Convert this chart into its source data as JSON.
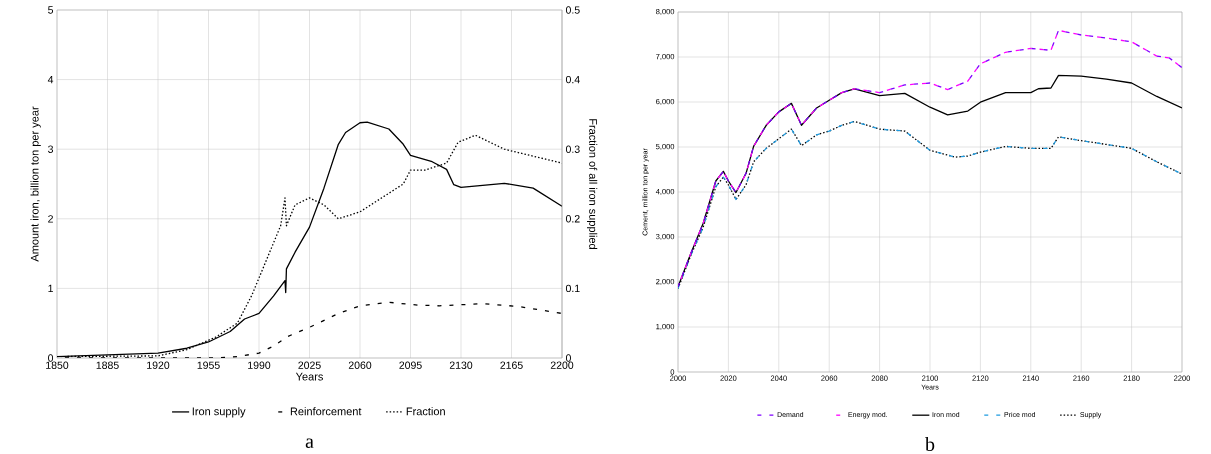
{
  "chart_data": [
    {
      "type": "line",
      "xlabel": "Years",
      "ylabel": "Amount iron, billion ton per year",
      "y2label": "Fraction of all iron supplied",
      "xlim": [
        1850,
        2200
      ],
      "xticks": [
        1850,
        1885,
        1920,
        1955,
        1990,
        2025,
        2060,
        2095,
        2130,
        2165,
        2200
      ],
      "ylim": [
        0,
        5
      ],
      "yticks": [
        0,
        1,
        2,
        3,
        4,
        5
      ],
      "y2lim": [
        0,
        0.5
      ],
      "y2ticks": [
        0,
        0.1,
        0.2,
        0.3,
        0.4,
        0.5
      ],
      "grid": true,
      "legend": "bottom",
      "annotations": [
        "a"
      ],
      "series": [
        {
          "name": "Iron supply",
          "color": "#000000",
          "line_style": "solid",
          "x": [
            1850,
            1920,
            1940,
            1955,
            1970,
            1980,
            1990,
            2000,
            2008,
            2008.5,
            2009,
            2015,
            2025,
            2035,
            2045,
            2050,
            2060,
            2065,
            2080,
            2090,
            2095,
            2110,
            2120,
            2125,
            2130,
            2160,
            2180,
            2200
          ],
          "values": [
            0.02,
            0.07,
            0.14,
            0.23,
            0.38,
            0.56,
            0.64,
            0.89,
            1.11,
            0.94,
            1.28,
            1.52,
            1.88,
            2.44,
            3.07,
            3.24,
            3.38,
            3.39,
            3.29,
            3.07,
            2.91,
            2.82,
            2.71,
            2.49,
            2.45,
            2.51,
            2.44,
            2.18
          ]
        },
        {
          "name": "Reinforcement",
          "color": "#000000",
          "line_style": "dashed",
          "x": [
            1850,
            1960,
            1975,
            1990,
            2000,
            2010,
            2025,
            2045,
            2060,
            2080,
            2100,
            2115,
            2145,
            2170,
            2200
          ],
          "values": [
            0,
            0,
            0.02,
            0.07,
            0.17,
            0.31,
            0.44,
            0.64,
            0.75,
            0.8,
            0.76,
            0.75,
            0.78,
            0.74,
            0.64
          ]
        },
        {
          "name": "Fraction",
          "color": "#000000",
          "line_style": "dotted",
          "axis": "y2",
          "x": [
            1850,
            1920,
            1940,
            1960,
            1975,
            1985,
            1995,
            2005,
            2008,
            2009,
            2015,
            2025,
            2035,
            2045,
            2060,
            2075,
            2090,
            2095,
            2105,
            2120,
            2128,
            2140,
            2160,
            2180,
            2200
          ],
          "values": [
            0.002,
            0.003,
            0.012,
            0.03,
            0.05,
            0.09,
            0.14,
            0.19,
            0.23,
            0.19,
            0.22,
            0.23,
            0.22,
            0.2,
            0.21,
            0.23,
            0.25,
            0.27,
            0.27,
            0.28,
            0.31,
            0.32,
            0.3,
            0.29,
            0.28
          ]
        }
      ]
    },
    {
      "type": "line",
      "xlabel": "Years",
      "ylabel": "Cement, million ton per year",
      "xlim": [
        2000,
        2200
      ],
      "xticks": [
        2000,
        2020,
        2040,
        2060,
        2080,
        2100,
        2120,
        2140,
        2160,
        2180,
        2200
      ],
      "ylim": [
        0,
        8000
      ],
      "yticks": [
        0,
        {
          "value": 1000,
          "label": "1,000"
        },
        {
          "value": 2000,
          "label": "2,000"
        },
        {
          "value": 3000,
          "label": "3,000"
        },
        {
          "value": 4000,
          "label": "4,000"
        },
        {
          "value": 5000,
          "label": "5,000"
        },
        {
          "value": 6000,
          "label": "6,000"
        },
        {
          "value": 7000,
          "label": "7,000"
        },
        {
          "value": 8000,
          "label": "8,000"
        }
      ],
      "grid": true,
      "legend": "bottom",
      "annotations": [
        "b"
      ],
      "series": [
        {
          "name": "Demand",
          "color": "#7f00ff",
          "line_style": "dashed",
          "x": [
            2000,
            2005,
            2010,
            2015,
            2018,
            2020,
            2023,
            2027,
            2030,
            2035,
            2040,
            2045,
            2049,
            2055,
            2060,
            2065,
            2070,
            2080,
            2090,
            2100,
            2107,
            2115,
            2120,
            2130,
            2140,
            2148,
            2151,
            2160,
            2170,
            2180,
            2190,
            2195,
            2200
          ],
          "values": [
            1896,
            2622,
            3305,
            4244,
            4458,
            4244,
            3988,
            4415,
            5013,
            5482,
            5781,
            5969,
            5482,
            5867,
            6038,
            6208,
            6294,
            6208,
            6379,
            6422,
            6277,
            6465,
            6849,
            7105,
            7190,
            7148,
            7592,
            7489,
            7421,
            7336,
            7020,
            6977,
            6763
          ]
        },
        {
          "name": "Energy mod.",
          "color": "#ff00ff",
          "line_style": "dashed",
          "x": [
            2000,
            2005,
            2010,
            2015,
            2018,
            2020,
            2023,
            2027,
            2030,
            2035,
            2040,
            2045,
            2049,
            2055,
            2060,
            2065,
            2070,
            2080,
            2090,
            2100,
            2107,
            2115,
            2120,
            2130,
            2140,
            2148,
            2151,
            2160,
            2170,
            2180,
            2190,
            2195,
            2200
          ],
          "values": [
            1896,
            2622,
            3305,
            4244,
            4458,
            4244,
            3988,
            4415,
            5013,
            5482,
            5781,
            5969,
            5482,
            5867,
            6038,
            6208,
            6294,
            6208,
            6379,
            6422,
            6277,
            6465,
            6849,
            7105,
            7190,
            7148,
            7592,
            7489,
            7421,
            7336,
            7020,
            6977,
            6763
          ]
        },
        {
          "name": "Iron mod",
          "color": "#000000",
          "line_style": "solid",
          "x": [
            2000,
            2005,
            2010,
            2015,
            2018,
            2020,
            2023,
            2027,
            2030,
            2035,
            2040,
            2045,
            2049,
            2055,
            2060,
            2065,
            2070,
            2080,
            2090,
            2100,
            2107,
            2115,
            2120,
            2130,
            2140,
            2143,
            2148,
            2151,
            2160,
            2170,
            2180,
            2190,
            2200
          ],
          "values": [
            1896,
            2622,
            3305,
            4244,
            4458,
            4244,
            3988,
            4415,
            5013,
            5482,
            5781,
            5969,
            5482,
            5867,
            6038,
            6208,
            6294,
            6140,
            6191,
            5884,
            5713,
            5798,
            5995,
            6208,
            6208,
            6294,
            6311,
            6593,
            6575,
            6507,
            6422,
            6123,
            5867
          ]
        },
        {
          "name": "Price mod",
          "color": "#1e9be0",
          "line_style": "dashed",
          "x": [
            2000,
            2005,
            2010,
            2015,
            2018,
            2020,
            2023,
            2027,
            2030,
            2035,
            2040,
            2045,
            2049,
            2055,
            2060,
            2065,
            2070,
            2080,
            2090,
            2100,
            2110,
            2115,
            2120,
            2130,
            2140,
            2148,
            2151,
            2160,
            2170,
            2180,
            2190,
            2200
          ],
          "values": [
            1853,
            2579,
            3219,
            4116,
            4330,
            4159,
            3834,
            4159,
            4671,
            4970,
            5184,
            5397,
            5030,
            5269,
            5354,
            5482,
            5568,
            5397,
            5354,
            4927,
            4774,
            4799,
            4885,
            5013,
            4970,
            4970,
            5226,
            5141,
            5056,
            4970,
            4671,
            4398
          ]
        },
        {
          "name": "Supply",
          "color": "#000000",
          "line_style": "dotted",
          "x": [
            2000,
            2005,
            2010,
            2015,
            2018,
            2020,
            2023,
            2027,
            2030,
            2035,
            2040,
            2045,
            2049,
            2055,
            2060,
            2065,
            2070,
            2080,
            2090,
            2100,
            2110,
            2115,
            2120,
            2130,
            2140,
            2148,
            2151,
            2160,
            2170,
            2180,
            2190,
            2200
          ],
          "values": [
            1853,
            2579,
            3219,
            4116,
            4330,
            4159,
            3834,
            4159,
            4671,
            4970,
            5184,
            5397,
            5030,
            5269,
            5354,
            5482,
            5568,
            5397,
            5354,
            4927,
            4774,
            4799,
            4885,
            5013,
            4970,
            4970,
            5226,
            5141,
            5056,
            4970,
            4671,
            4398
          ]
        }
      ]
    }
  ]
}
